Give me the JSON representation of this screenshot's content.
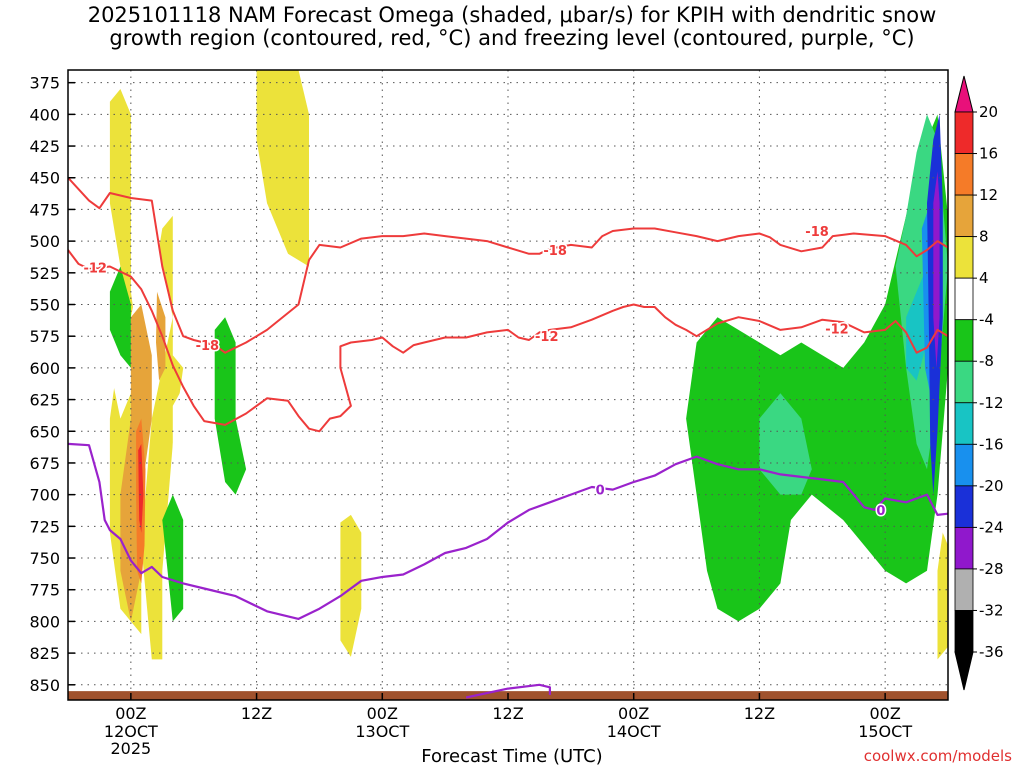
{
  "chart_data": {
    "type": "heatmap",
    "title_lines": [
      "2025101118 NAM Forecast Omega (shaded, μbar/s) for KPIH with dendritic snow",
      "growth region (contoured, red, °C) and freezing level (contoured, purple, °C)"
    ],
    "xlabel": "Forecast Time (UTC)",
    "y_ticks": [
      375,
      400,
      425,
      450,
      475,
      500,
      525,
      550,
      575,
      600,
      625,
      650,
      675,
      700,
      725,
      750,
      775,
      800,
      825,
      850
    ],
    "x_ticks": [
      {
        "h": 6,
        "top": "00Z",
        "bottom": "12OCT",
        "extra": "2025"
      },
      {
        "h": 18,
        "top": "12Z",
        "bottom": "",
        "extra": ""
      },
      {
        "h": 30,
        "top": "00Z",
        "bottom": "13OCT",
        "extra": ""
      },
      {
        "h": 42,
        "top": "12Z",
        "bottom": "",
        "extra": ""
      },
      {
        "h": 54,
        "top": "00Z",
        "bottom": "14OCT",
        "extra": ""
      },
      {
        "h": 66,
        "top": "12Z",
        "bottom": "",
        "extra": ""
      },
      {
        "h": 78,
        "top": "00Z",
        "bottom": "15OCT",
        "extra": ""
      }
    ],
    "x_range_hours": [
      0,
      84
    ],
    "y_range_hpa": [
      365,
      862
    ],
    "colorbar": {
      "labels": [
        "20",
        "16",
        "12",
        "8",
        "4",
        "-4",
        "-8",
        "-12",
        "-16",
        "-20",
        "-24",
        "-28",
        "-32",
        "-36"
      ],
      "colors": [
        "#e8107a",
        "#ee2a2a",
        "#f57b28",
        "#e6a43a",
        "#ece23a",
        "#ffffff",
        "#19c519",
        "#3ad882",
        "#18c4c4",
        "#1890ee",
        "#1a30d8",
        "#9018cc",
        "#b0b0b0",
        "#000000"
      ]
    },
    "contour_labels": {
      "temp_minus18": "-18",
      "temp_minus12": "-12",
      "freezing": "0"
    },
    "temp_contour_minus18": [
      [
        0,
        450
      ],
      [
        2,
        468
      ],
      [
        3,
        474
      ],
      [
        4,
        462
      ],
      [
        6,
        466
      ],
      [
        8,
        468
      ],
      [
        9,
        520
      ],
      [
        10,
        555
      ],
      [
        11,
        575
      ],
      [
        12,
        578
      ],
      [
        14,
        582
      ],
      [
        15,
        588
      ],
      [
        17,
        580
      ],
      [
        19,
        570
      ],
      [
        22,
        550
      ],
      [
        23,
        515
      ],
      [
        24,
        503
      ],
      [
        26,
        505
      ],
      [
        28,
        498
      ],
      [
        30,
        496
      ],
      [
        32,
        496
      ],
      [
        34,
        494
      ],
      [
        36,
        496
      ],
      [
        38,
        498
      ],
      [
        40,
        500
      ],
      [
        42,
        505
      ],
      [
        44,
        510
      ],
      [
        45,
        510
      ],
      [
        46,
        506
      ],
      [
        48,
        503
      ],
      [
        50,
        505
      ],
      [
        51,
        496
      ],
      [
        52,
        492
      ],
      [
        54,
        490
      ],
      [
        56,
        490
      ],
      [
        58,
        493
      ],
      [
        60,
        496
      ],
      [
        62,
        500
      ],
      [
        64,
        496
      ],
      [
        66,
        494
      ],
      [
        67,
        497
      ],
      [
        68,
        503
      ],
      [
        70,
        508
      ],
      [
        72,
        505
      ],
      [
        73,
        496
      ],
      [
        75,
        494
      ],
      [
        78,
        496
      ],
      [
        80,
        503
      ],
      [
        81,
        512
      ],
      [
        82,
        507
      ],
      [
        83,
        500
      ],
      [
        84,
        505
      ]
    ],
    "temp_contour_minus12": [
      [
        0,
        507
      ],
      [
        1,
        518
      ],
      [
        2,
        522
      ],
      [
        4,
        520
      ],
      [
        6,
        528
      ],
      [
        7,
        538
      ],
      [
        8,
        555
      ],
      [
        9,
        575
      ],
      [
        10,
        598
      ],
      [
        11,
        615
      ],
      [
        12,
        630
      ],
      [
        13,
        642
      ],
      [
        15,
        645
      ],
      [
        17,
        636
      ],
      [
        19,
        624
      ],
      [
        21,
        626
      ],
      [
        22,
        638
      ],
      [
        23,
        648
      ],
      [
        24,
        650
      ],
      [
        25,
        640
      ],
      [
        26,
        638
      ],
      [
        27,
        630
      ],
      [
        26,
        600
      ],
      [
        26,
        583
      ],
      [
        27,
        580
      ],
      [
        29,
        578
      ],
      [
        30,
        576
      ],
      [
        31,
        583
      ],
      [
        32,
        588
      ],
      [
        33,
        582
      ],
      [
        34,
        580
      ],
      [
        36,
        576
      ],
      [
        38,
        576
      ],
      [
        40,
        572
      ],
      [
        42,
        570
      ],
      [
        43,
        576
      ],
      [
        44,
        578
      ],
      [
        45,
        572
      ],
      [
        46,
        570
      ],
      [
        48,
        568
      ],
      [
        50,
        562
      ],
      [
        52,
        555
      ],
      [
        53,
        552
      ],
      [
        54,
        550
      ],
      [
        55,
        552
      ],
      [
        56,
        552
      ],
      [
        57,
        560
      ],
      [
        58,
        566
      ],
      [
        59,
        570
      ],
      [
        60,
        575
      ],
      [
        61,
        570
      ],
      [
        62,
        565
      ],
      [
        64,
        560
      ],
      [
        66,
        563
      ],
      [
        68,
        570
      ],
      [
        70,
        568
      ],
      [
        72,
        562
      ],
      [
        74,
        564
      ],
      [
        76,
        572
      ],
      [
        78,
        570
      ],
      [
        79,
        563
      ],
      [
        80,
        572
      ],
      [
        81,
        588
      ],
      [
        82,
        584
      ],
      [
        83,
        570
      ],
      [
        84,
        575
      ]
    ],
    "freezing_contour": [
      [
        0,
        660
      ],
      [
        2,
        661
      ],
      [
        3,
        690
      ],
      [
        3.5,
        720
      ],
      [
        4,
        728
      ],
      [
        5,
        735
      ],
      [
        6,
        752
      ],
      [
        7,
        762
      ],
      [
        8,
        757
      ],
      [
        9,
        765
      ],
      [
        11,
        770
      ],
      [
        13,
        774
      ],
      [
        16,
        780
      ],
      [
        19,
        792
      ],
      [
        22,
        798
      ],
      [
        24,
        790
      ],
      [
        26,
        780
      ],
      [
        28,
        768
      ],
      [
        30,
        765
      ],
      [
        32,
        763
      ],
      [
        34,
        755
      ],
      [
        36,
        746
      ],
      [
        38,
        742
      ],
      [
        40,
        735
      ],
      [
        42,
        722
      ],
      [
        44,
        712
      ],
      [
        46,
        706
      ],
      [
        48,
        700
      ],
      [
        50,
        694
      ],
      [
        52,
        696
      ],
      [
        54,
        690
      ],
      [
        56,
        685
      ],
      [
        58,
        676
      ],
      [
        60,
        670
      ],
      [
        62,
        676
      ],
      [
        64,
        680
      ],
      [
        66,
        680
      ],
      [
        68,
        684
      ],
      [
        70,
        686
      ],
      [
        72,
        688
      ],
      [
        74,
        690
      ],
      [
        75,
        700
      ],
      [
        76,
        710
      ],
      [
        77,
        712
      ],
      [
        78,
        703
      ],
      [
        80,
        706
      ],
      [
        82,
        700
      ],
      [
        83,
        716
      ],
      [
        84,
        715
      ]
    ],
    "freezing_contour_2": [
      [
        38,
        860
      ],
      [
        42,
        853
      ],
      [
        45,
        850
      ],
      [
        46,
        852
      ],
      [
        46,
        858
      ]
    ]
  }
}
